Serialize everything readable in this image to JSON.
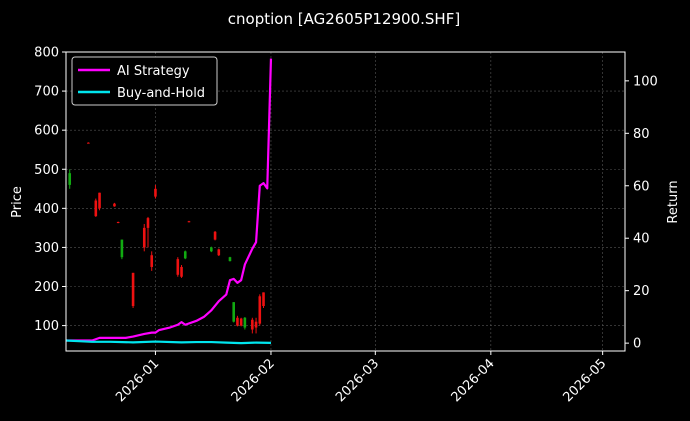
{
  "chart_data": {
    "type": "line",
    "title": "cnoption [AG2605P12900.SHF]",
    "left_axis": {
      "label": "Price",
      "ylim": [
        35,
        800
      ],
      "ticks": [
        100,
        200,
        300,
        400,
        500,
        600,
        700,
        800
      ]
    },
    "right_axis": {
      "label": "Return",
      "ylim": [
        -3,
        111
      ],
      "ticks": [
        0,
        20,
        40,
        60,
        80,
        100
      ]
    },
    "x_axis": {
      "xlim": [
        "2025-12-08",
        "2026-05-07"
      ],
      "ticks": [
        "2026-01",
        "2026-02",
        "2026-03",
        "2026-04",
        "2026-05"
      ],
      "tick_dates": [
        "2026-01-01",
        "2026-02-01",
        "2026-03-01",
        "2026-04-01",
        "2026-05-01"
      ]
    },
    "grid": true,
    "legend": {
      "position": "top-left",
      "entries": [
        {
          "name": "AI Strategy",
          "color": "#ff00ff"
        },
        {
          "name": "Buy-and-Hold",
          "color": "#00e5ee"
        }
      ]
    },
    "series": [
      {
        "name": "AI Strategy",
        "axis": "right",
        "color": "#ff00ff",
        "points": [
          [
            "2025-12-08",
            1.0
          ],
          [
            "2025-12-15",
            1.0
          ],
          [
            "2025-12-17",
            2.0
          ],
          [
            "2025-12-19",
            2.0
          ],
          [
            "2025-12-22",
            2.0
          ],
          [
            "2025-12-24",
            2.0
          ],
          [
            "2025-12-26",
            2.5
          ],
          [
            "2025-12-29",
            3.5
          ],
          [
            "2025-12-31",
            4.0
          ],
          [
            "2026-01-01",
            4.0
          ],
          [
            "2026-01-02",
            5.0
          ],
          [
            "2026-01-05",
            6.0
          ],
          [
            "2026-01-07",
            7.0
          ],
          [
            "2026-01-08",
            8.0
          ],
          [
            "2026-01-09",
            7.0
          ],
          [
            "2026-01-12",
            8.5
          ],
          [
            "2026-01-14",
            10.0
          ],
          [
            "2026-01-16",
            12.5
          ],
          [
            "2026-01-18",
            16.0
          ],
          [
            "2026-01-20",
            18.5
          ],
          [
            "2026-01-21",
            24.0
          ],
          [
            "2026-01-22",
            24.5
          ],
          [
            "2026-01-23",
            23.0
          ],
          [
            "2026-01-24",
            24.0
          ],
          [
            "2026-01-25",
            30.0
          ],
          [
            "2026-01-26",
            33.0
          ],
          [
            "2026-01-27",
            36.0
          ],
          [
            "2026-01-28",
            38.5
          ],
          [
            "2026-01-29",
            60.0
          ],
          [
            "2026-01-30",
            61.0
          ],
          [
            "2026-01-31",
            59.0
          ],
          [
            "2026-02-01",
            108.5
          ]
        ]
      },
      {
        "name": "Buy-and-Hold",
        "axis": "right",
        "color": "#00e5ee",
        "points": [
          [
            "2025-12-08",
            1.0
          ],
          [
            "2025-12-15",
            0.5
          ],
          [
            "2025-12-20",
            0.5
          ],
          [
            "2025-12-26",
            0.3
          ],
          [
            "2026-01-01",
            0.6
          ],
          [
            "2026-01-08",
            0.3
          ],
          [
            "2026-01-12",
            0.4
          ],
          [
            "2026-01-16",
            0.4
          ],
          [
            "2026-01-20",
            0.2
          ],
          [
            "2026-01-24",
            0.0
          ],
          [
            "2026-01-28",
            0.2
          ],
          [
            "2026-02-01",
            0.1
          ]
        ]
      }
    ],
    "candles": [
      {
        "date": "2025-12-09",
        "open": 460,
        "close": 490,
        "high": 500,
        "low": 450
      },
      {
        "date": "2025-12-14",
        "open": 568,
        "close": 567,
        "high": 569,
        "low": 566
      },
      {
        "date": "2025-12-16",
        "open": 420,
        "close": 380,
        "high": 425,
        "low": 378
      },
      {
        "date": "2025-12-17",
        "open": 440,
        "close": 400,
        "high": 440,
        "low": 395
      },
      {
        "date": "2025-12-21",
        "open": 412,
        "close": 405,
        "high": 414,
        "low": 404
      },
      {
        "date": "2025-12-22",
        "open": 365,
        "close": 363,
        "high": 366,
        "low": 362
      },
      {
        "date": "2025-12-23",
        "open": 275,
        "close": 320,
        "high": 320,
        "low": 270
      },
      {
        "date": "2025-12-26",
        "open": 235,
        "close": 150,
        "high": 235,
        "low": 145
      },
      {
        "date": "2025-12-29",
        "open": 350,
        "close": 300,
        "high": 360,
        "low": 290
      },
      {
        "date": "2025-12-30",
        "open": 375,
        "close": 350,
        "high": 378,
        "low": 300
      },
      {
        "date": "2025-12-31",
        "open": 280,
        "close": 250,
        "high": 290,
        "low": 240
      },
      {
        "date": "2026-01-01",
        "open": 450,
        "close": 430,
        "high": 460,
        "low": 425
      },
      {
        "date": "2026-01-07",
        "open": 270,
        "close": 230,
        "high": 275,
        "low": 225
      },
      {
        "date": "2026-01-08",
        "open": 250,
        "close": 225,
        "high": 255,
        "low": 222
      },
      {
        "date": "2026-01-09",
        "open": 272,
        "close": 290,
        "high": 292,
        "low": 270
      },
      {
        "date": "2026-01-10",
        "open": 367,
        "close": 365,
        "high": 368,
        "low": 364
      },
      {
        "date": "2026-01-16",
        "open": 290,
        "close": 300,
        "high": 302,
        "low": 288
      },
      {
        "date": "2026-01-17",
        "open": 340,
        "close": 320,
        "high": 342,
        "low": 318
      },
      {
        "date": "2026-01-18",
        "open": 295,
        "close": 280,
        "high": 297,
        "low": 278
      },
      {
        "date": "2026-01-21",
        "open": 265,
        "close": 275,
        "high": 276,
        "low": 264
      },
      {
        "date": "2026-01-22",
        "open": 110,
        "close": 160,
        "high": 160,
        "low": 108
      },
      {
        "date": "2026-01-23",
        "open": 120,
        "close": 100,
        "high": 125,
        "low": 98
      },
      {
        "date": "2026-01-24",
        "open": 118,
        "close": 100,
        "high": 120,
        "low": 98
      },
      {
        "date": "2026-01-25",
        "open": 95,
        "close": 120,
        "high": 122,
        "low": 90
      },
      {
        "date": "2026-01-27",
        "open": 115,
        "close": 90,
        "high": 120,
        "low": 80
      },
      {
        "date": "2026-01-28",
        "open": 110,
        "close": 95,
        "high": 120,
        "low": 80
      },
      {
        "date": "2026-01-29",
        "open": 175,
        "close": 105,
        "high": 180,
        "low": 100
      },
      {
        "date": "2026-01-30",
        "open": 185,
        "close": 150,
        "high": 185,
        "low": 145
      }
    ],
    "candle_colors": {
      "up": "#11aa11",
      "down": "#ee1111"
    }
  }
}
